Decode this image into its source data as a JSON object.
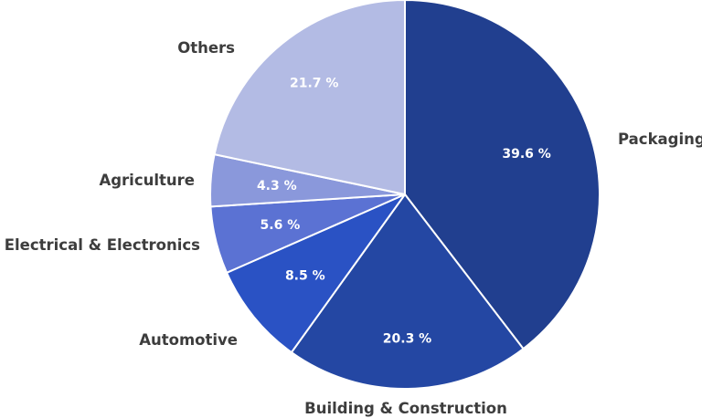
{
  "chart_data": {
    "type": "pie",
    "categories": [
      "Packaging",
      "Building & Construction",
      "Automotive",
      "Electrical & Electronics",
      "Agriculture",
      "Others"
    ],
    "values": [
      39.6,
      20.3,
      8.5,
      5.6,
      4.3,
      21.7
    ],
    "value_labels": [
      "39.6 %",
      "20.3 %",
      "8.5 %",
      "5.6 %",
      "4.3 %",
      "21.7 %"
    ],
    "colors": [
      "#213f8f",
      "#2447a3",
      "#2a52c4",
      "#5b72d3",
      "#8a98db",
      "#b3bbe4"
    ],
    "start_angle": "12 o'clock",
    "direction": "clockwise",
    "legend": "none (labels outside slices)"
  }
}
